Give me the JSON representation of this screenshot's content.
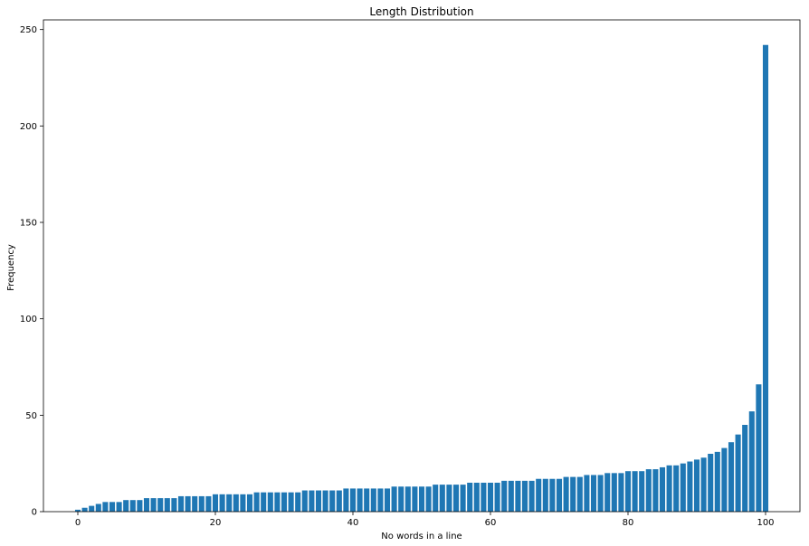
{
  "chart_data": {
    "type": "bar",
    "title": "Length Distribution",
    "xlabel": "No words in a line",
    "ylabel": "Frequency",
    "xlim": [
      -5,
      105
    ],
    "ylim": [
      0,
      255
    ],
    "xticks": [
      0,
      20,
      40,
      60,
      80,
      100
    ],
    "yticks": [
      0,
      50,
      100,
      150,
      200,
      250
    ],
    "grid": false,
    "bar_color": "#1f77b4",
    "x": [
      0,
      1,
      2,
      3,
      4,
      5,
      6,
      7,
      8,
      9,
      10,
      11,
      12,
      13,
      14,
      15,
      16,
      17,
      18,
      19,
      20,
      21,
      22,
      23,
      24,
      25,
      26,
      27,
      28,
      29,
      30,
      31,
      32,
      33,
      34,
      35,
      36,
      37,
      38,
      39,
      40,
      41,
      42,
      43,
      44,
      45,
      46,
      47,
      48,
      49,
      50,
      51,
      52,
      53,
      54,
      55,
      56,
      57,
      58,
      59,
      60,
      61,
      62,
      63,
      64,
      65,
      66,
      67,
      68,
      69,
      70,
      71,
      72,
      73,
      74,
      75,
      76,
      77,
      78,
      79,
      80,
      81,
      82,
      83,
      84,
      85,
      86,
      87,
      88,
      89,
      90,
      91,
      92,
      93,
      94,
      95,
      96,
      97,
      98,
      99,
      100
    ],
    "values": [
      1,
      2,
      3,
      4,
      5,
      5,
      5,
      6,
      6,
      6,
      7,
      7,
      7,
      7,
      7,
      8,
      8,
      8,
      8,
      8,
      9,
      9,
      9,
      9,
      9,
      9,
      10,
      10,
      10,
      10,
      10,
      10,
      10,
      11,
      11,
      11,
      11,
      11,
      11,
      12,
      12,
      12,
      12,
      12,
      12,
      12,
      13,
      13,
      13,
      13,
      13,
      13,
      14,
      14,
      14,
      14,
      14,
      15,
      15,
      15,
      15,
      15,
      16,
      16,
      16,
      16,
      16,
      17,
      17,
      17,
      17,
      18,
      18,
      18,
      19,
      19,
      19,
      20,
      20,
      20,
      21,
      21,
      21,
      22,
      22,
      23,
      24,
      24,
      25,
      26,
      27,
      28,
      30,
      31,
      33,
      36,
      40,
      45,
      52,
      66,
      242
    ]
  }
}
